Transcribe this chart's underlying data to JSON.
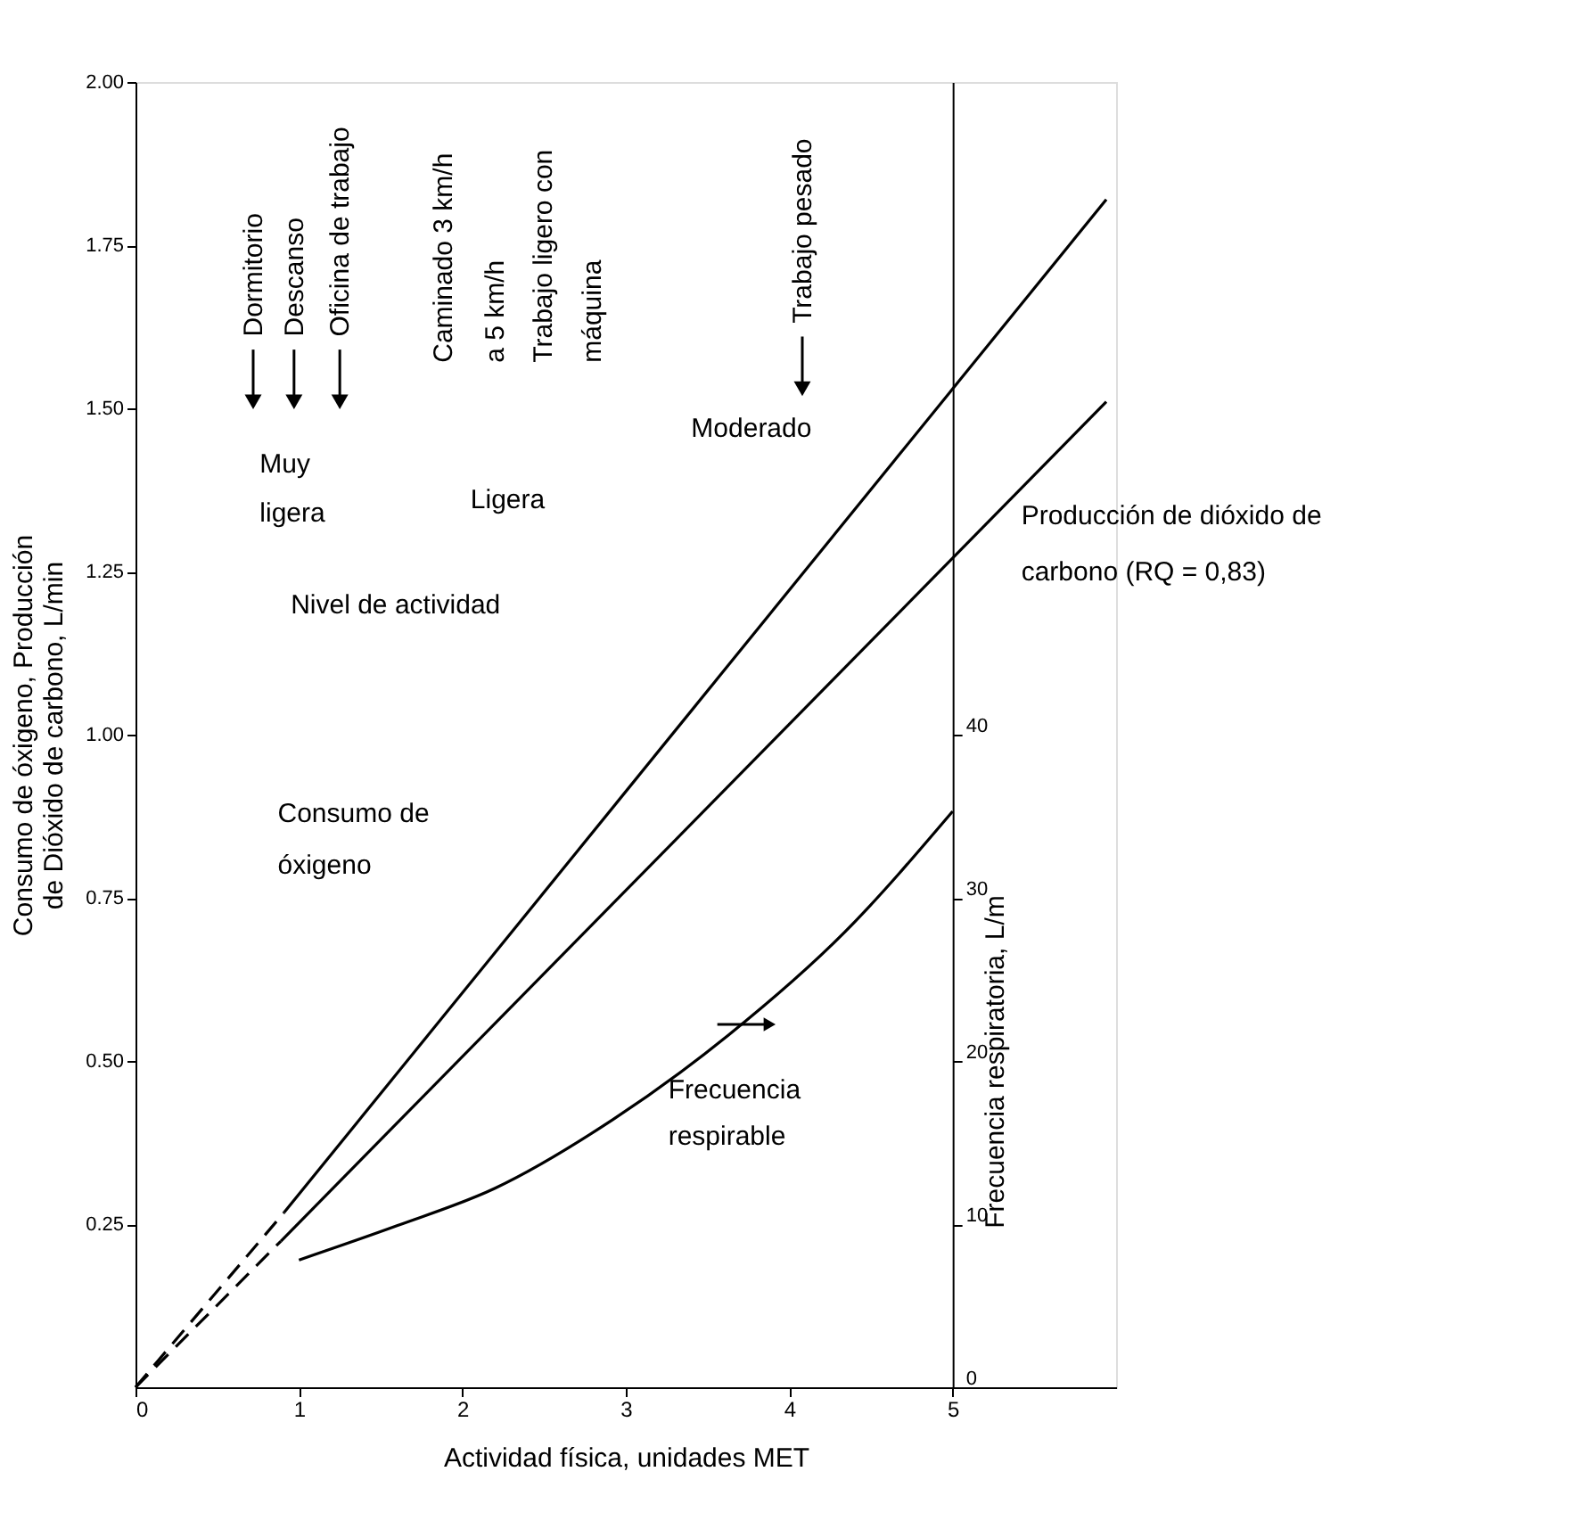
{
  "chart_data": {
    "type": "line",
    "xlabel": "Actividad física, unidades MET",
    "ylabel": "Consumo de óxigeno, Producción de Dióxido de carbono, L/min",
    "y2label": "Frecuencia respiratoria, L/m",
    "xlim": [
      0,
      6
    ],
    "xticks": [
      0,
      1,
      2,
      3,
      4,
      5
    ],
    "ylim": [
      0,
      2
    ],
    "yticks": [
      0.25,
      {
        "value": 0.5,
        "label": "0.50"
      },
      0.75,
      {
        "value": 1.0,
        "label": "1.00"
      },
      1.25,
      {
        "value": 1.5,
        "label": "1.50"
      },
      1.75,
      {
        "value": 2.0,
        "label": "2.00"
      }
    ],
    "y2lim": [
      0,
      80
    ],
    "y2ticks": [
      0,
      10,
      20,
      30,
      40
    ],
    "grid": false,
    "legend": false,
    "marker": "none",
    "series": [
      {
        "color": "#000000",
        "line_style": "dashed",
        "x": [
          0,
          0.91
        ],
        "values": [
          0,
          0.268
        ]
      },
      {
        "color": "#000000",
        "line_style": "solid",
        "x": [
          0.91,
          5.94
        ],
        "values": [
          0.268,
          1.82
        ]
      },
      {
        "color": "#000000",
        "line_style": "dashed",
        "x": [
          0,
          0.89
        ],
        "values": [
          0,
          0.224
        ]
      },
      {
        "color": "#000000",
        "line_style": "solid",
        "x": [
          0.89,
          5.94
        ],
        "values": [
          0.224,
          1.51
        ]
      },
      {
        "color": "#000000",
        "line_style": "solid",
        "axis": "y2",
        "x": [
          1.0,
          1.6,
          2.2,
          2.92,
          3.63,
          4.34,
          5.0
        ],
        "values": [
          7.8,
          9.9,
          12.2,
          16.4,
          21.6,
          27.9,
          35.3
        ]
      }
    ],
    "annotations": [
      "Dormitorio",
      "Descanso",
      "Oficina de trabajo",
      "Caminado 3 km/h",
      "a 5 km/h",
      "Trabajo ligero con",
      "máquina",
      "Trabajo pesado",
      "Muy",
      "ligera",
      "Ligera",
      "Moderado",
      "Nivel de actividad",
      "Consumo de",
      "óxigeno",
      "Producción de dióxido de",
      "carbono (RQ = 0,83)",
      "Frecuencia",
      "respirable"
    ]
  }
}
